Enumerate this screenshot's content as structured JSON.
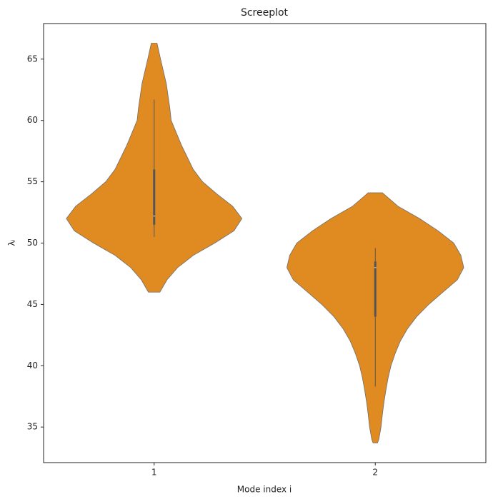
{
  "chart_data": {
    "type": "violin",
    "title": "Screeplot",
    "x_label": "Mode index i",
    "y_label": "λᵢ",
    "categories": [
      "1",
      "2"
    ],
    "color": "#e08a22",
    "edge_color": "#6e6e6e",
    "box_color": "#555555",
    "ylim": [
      32.1,
      67.9
    ],
    "yticks": [
      35,
      40,
      45,
      50,
      55,
      60,
      65
    ],
    "series": [
      {
        "y": [
          46,
          47,
          48,
          49,
          50,
          51,
          52,
          53,
          54,
          55,
          56,
          58,
          60,
          61,
          63,
          65,
          66.3
        ],
        "half_width": [
          0.026,
          0.058,
          0.106,
          0.177,
          0.274,
          0.361,
          0.397,
          0.355,
          0.284,
          0.219,
          0.177,
          0.123,
          0.077,
          0.071,
          0.055,
          0.029,
          0.013
        ],
        "whisker_low": 50.5,
        "q1": 51.5,
        "median": 52.2,
        "q3": 56,
        "whisker_high": 61.7
      },
      {
        "y": [
          33.7,
          34,
          35,
          36,
          37,
          38,
          39,
          40,
          41,
          42,
          43,
          44,
          45,
          46,
          47,
          48,
          49,
          50,
          51,
          52,
          53,
          54.1
        ],
        "half_width": [
          0.01,
          0.016,
          0.026,
          0.032,
          0.039,
          0.048,
          0.058,
          0.071,
          0.09,
          0.113,
          0.145,
          0.187,
          0.242,
          0.306,
          0.371,
          0.4,
          0.387,
          0.355,
          0.284,
          0.2,
          0.103,
          0.032
        ],
        "whisker_low": 38.3,
        "q1": 44,
        "median": 48,
        "q3": 48.5,
        "whisker_high": 49.6
      }
    ]
  }
}
